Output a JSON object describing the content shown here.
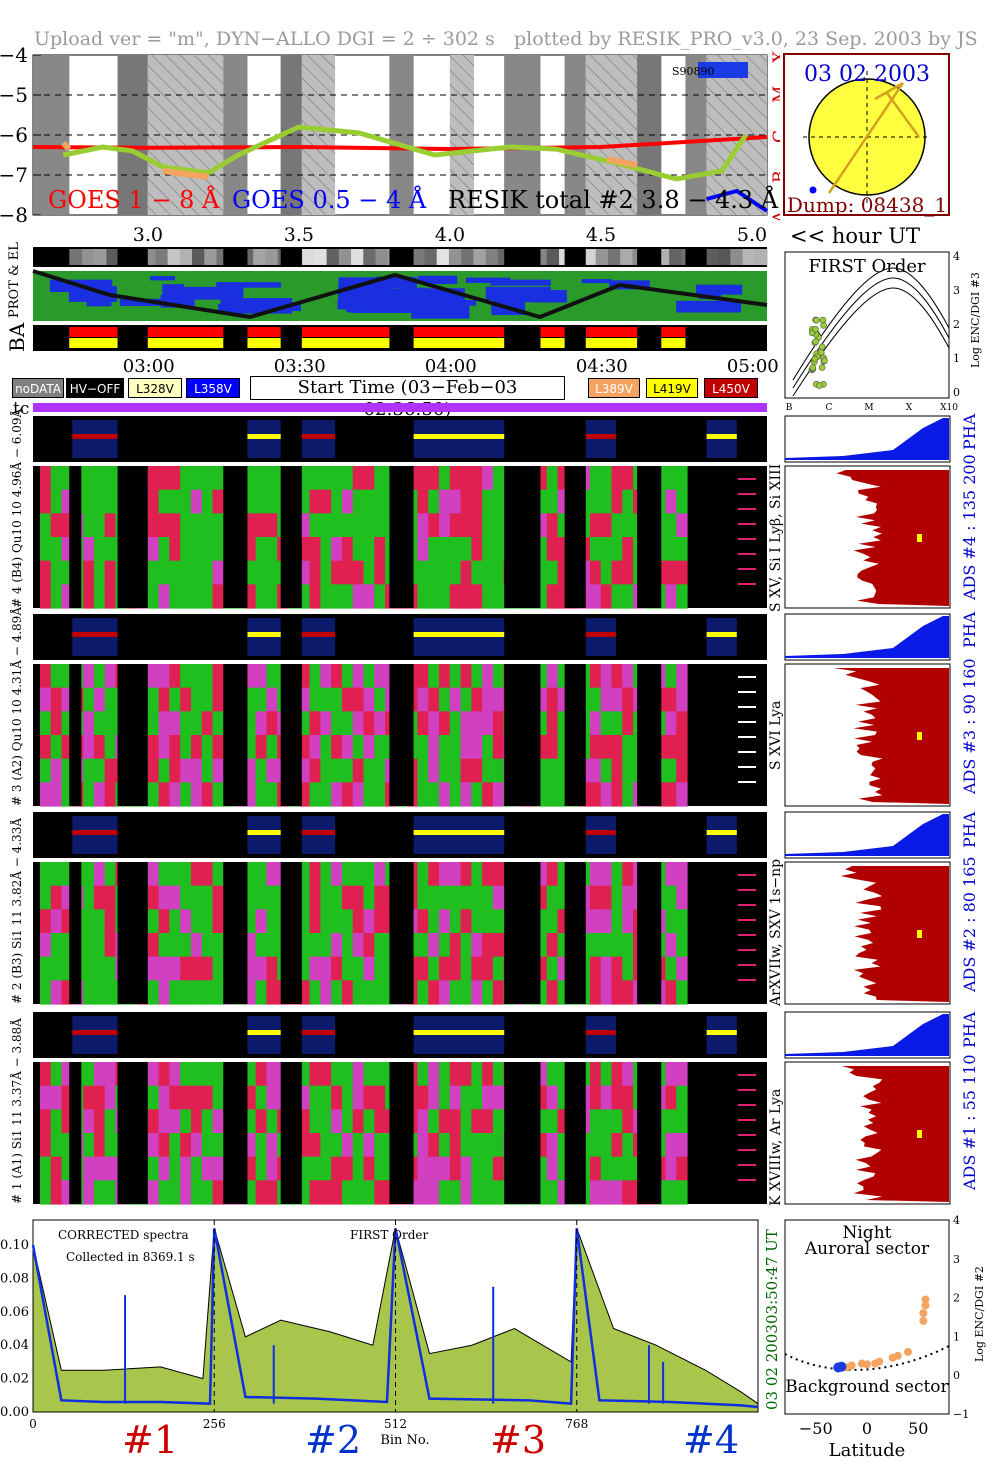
{
  "header": {
    "left": "Upload ver = \"m\", DYN−ALLO DGI =   2 ÷ 302 s",
    "right": "plotted by RESIK_PRO_v3.0, 23 Sep. 2003 by JS"
  },
  "goes": {
    "y_ticks": [
      "−4",
      "−5",
      "−6",
      "−7",
      "−8"
    ],
    "x_ticks": [
      "3.0",
      "3.5",
      "4.0",
      "4.5",
      "5.0"
    ],
    "class_letters": [
      "X",
      "M",
      "C",
      "B",
      "A"
    ],
    "legend_long": "GOES 1 − 8 Å",
    "legend_short": "GOES 0.5 − 4 Å",
    "legend_resik": "RESIK total #2  3.8 − 4.3 Å",
    "sat_label": "S90890",
    "colors": {
      "long": "#ff0000",
      "short": "#0000ff",
      "resik": "#9acd32",
      "resik_alt": "#f4a460"
    }
  },
  "sun": {
    "date": "03 02 2003",
    "dump": "Dump: 08438_1"
  },
  "hour_label": "<< hour UT",
  "side_labels": {
    "prot": "PROT & EL",
    "ba": "BA",
    "hv": "HV"
  },
  "time_ticks": [
    "03:00",
    "03:30",
    "04:00",
    "04:30",
    "05:00"
  ],
  "legend": [
    {
      "label": "noDATA",
      "bg": "#808080",
      "fg": "#ffffff"
    },
    {
      "label": "HV−OFF",
      "bg": "#000000",
      "fg": "#ffffff"
    },
    {
      "label": "L328V",
      "bg": "#ffffc0",
      "fg": "#000000"
    },
    {
      "label": "L358V",
      "bg": "#0000ff",
      "fg": "#ffffff"
    },
    {
      "label": "L389V",
      "bg": "#f4a460",
      "fg": "#ffffff"
    },
    {
      "label": "L419V",
      "bg": "#ffff00",
      "fg": "#000000"
    },
    {
      "label": "L450V",
      "bg": "#c00000",
      "fg": "#ffffff"
    }
  ],
  "start_time": "Start Time (03−Feb−03 02:36:50)",
  "tc_label": "tc",
  "first_order": {
    "title": "FIRST Order",
    "ylabel": "Log ENC/DGI #3",
    "y_ticks": [
      "4",
      "3",
      "2",
      "1",
      "0"
    ],
    "x_ticks": [
      "B",
      "C",
      "M",
      "X",
      "X10"
    ]
  },
  "channels": [
    {
      "left": "# 4 (B4) Qu10 10  4.96Å − 6.09Å",
      "right": "S XV, Si I Lyβ, Si XIII",
      "ads": "ADS #4 :   135 200",
      "pha": "PHA"
    },
    {
      "left": "# 3 (A2) Qu10 10  4.31Å − 4.89Å",
      "right": "S XVI Lya",
      "ads": "ADS #3 :   90 160",
      "pha": "PHA"
    },
    {
      "left": "# 2 (B3) Si1 11  3.82Å − 4.33Å",
      "right": "ArXVIIw, SXV 1s−np",
      "ads": "ADS #2 :   80 165",
      "pha": "PHA"
    },
    {
      "left": "# 1 (A1) Si1 11  3.37Å − 3.88Å",
      "right": "K XVIIIw, Ar Lya",
      "ads": "ADS #1 :   55 110",
      "pha": "PHA"
    }
  ],
  "spectrum": {
    "title": "CORRECTED spectra",
    "collected": "Collected in  8369.1 s",
    "first_order": "FIRST Order",
    "xlabel": "Bin No.",
    "x_ticks": [
      "0",
      "256",
      "512",
      "768"
    ],
    "y_ticks": [
      "0.00",
      "0.02",
      "0.04",
      "0.06",
      "0.08",
      "0.10"
    ],
    "time_right": "03:50:47 UT",
    "date_right": "03 02 2003",
    "segments": [
      {
        "label": "#1",
        "color": "#cc0000"
      },
      {
        "label": "#2",
        "color": "#0033cc"
      },
      {
        "label": "#3",
        "color": "#cc0000"
      },
      {
        "label": "#4",
        "color": "#0033cc"
      }
    ]
  },
  "latitude": {
    "night": "Night",
    "auroral": "Auroral sector",
    "background": "Background sector",
    "xlabel": "Latitude",
    "ylabel": "Log ENC/DGI #2",
    "x_ticks": [
      "−50",
      "0",
      "50"
    ],
    "y_ticks": [
      "4",
      "3",
      "2",
      "1",
      "0",
      "−1"
    ]
  },
  "chart_data": [
    {
      "type": "line",
      "title": "",
      "xlabel": "hour UT",
      "ylabel": "",
      "xlim": [
        2.62,
        5.05
      ],
      "ylim": [
        -8,
        -4
      ],
      "series": [
        {
          "name": "GOES 1 − 8 Å",
          "x": [
            2.62,
            3.0,
            3.5,
            4.0,
            4.5,
            5.05
          ],
          "y": [
            -6.3,
            -6.32,
            -6.3,
            -6.35,
            -6.3,
            -6.05
          ]
        },
        {
          "name": "GOES 0.5 − 4 Å",
          "x": [
            4.85,
            4.95,
            5.05
          ],
          "y": [
            -7.6,
            -7.4,
            -7.9
          ]
        },
        {
          "name": "RESIK total #2  3.8 − 4.3 Å",
          "x": [
            2.72,
            2.85,
            2.95,
            3.05,
            3.2,
            3.3,
            3.5,
            3.7,
            3.95,
            4.2,
            4.35,
            4.55,
            4.75,
            4.9,
            4.98
          ],
          "y": [
            -6.5,
            -6.3,
            -6.4,
            -6.8,
            -6.95,
            -6.5,
            -5.8,
            -5.95,
            -6.5,
            -6.3,
            -6.35,
            -6.7,
            -7.1,
            -6.9,
            -6.0
          ]
        }
      ]
    },
    {
      "type": "area",
      "title": "CORRECTED spectra",
      "xlabel": "Bin No.",
      "ylabel": "",
      "xlim": [
        0,
        1024
      ],
      "ylim": [
        0,
        0.115
      ],
      "series": [
        {
          "name": "",
          "x": [
            0,
            40,
            100,
            180,
            240,
            256,
            300,
            350,
            420,
            480,
            512,
            560,
            620,
            680,
            760,
            768,
            820,
            880,
            950,
            1000,
            1024
          ],
          "y": [
            0.1,
            0.025,
            0.025,
            0.027,
            0.02,
            0.11,
            0.045,
            0.055,
            0.048,
            0.04,
            0.11,
            0.035,
            0.04,
            0.05,
            0.03,
            0.11,
            0.05,
            0.04,
            0.025,
            0.012,
            0.005
          ]
        },
        {
          "name": "",
          "x": [
            0,
            40,
            100,
            180,
            250,
            256,
            300,
            400,
            500,
            512,
            560,
            700,
            760,
            768,
            800,
            900,
            1000,
            1024
          ],
          "y": [
            0.1,
            0.007,
            0.006,
            0.006,
            0.005,
            0.11,
            0.009,
            0.008,
            0.006,
            0.11,
            0.008,
            0.007,
            0.005,
            0.11,
            0.007,
            0.006,
            0.004,
            0.003
          ]
        }
      ]
    },
    {
      "type": "scatter",
      "title": "",
      "xlabel": "Latitude",
      "ylabel": "Log ENC/DGI #2",
      "xlim": [
        -80,
        80
      ],
      "ylim": [
        -1,
        4
      ],
      "series": [
        {
          "name": "",
          "x": [
            -20,
            -15,
            -5,
            0,
            8,
            12,
            25,
            30,
            40,
            55,
            55,
            57,
            57
          ],
          "y": [
            0.2,
            0.25,
            0.3,
            0.28,
            0.3,
            0.35,
            0.45,
            0.5,
            0.6,
            1.4,
            1.6,
            1.8,
            1.95
          ]
        },
        {
          "name": "",
          "x": [
            -28,
            -25
          ],
          "y": [
            0.2,
            0.22
          ]
        }
      ]
    }
  ]
}
